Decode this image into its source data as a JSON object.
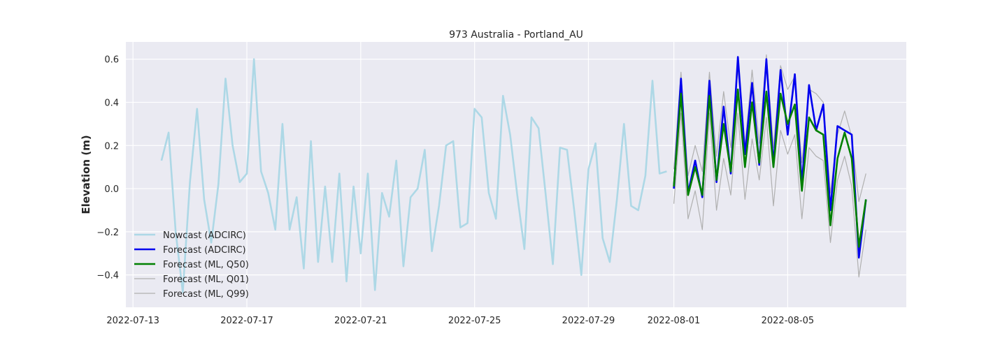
{
  "chart_data": {
    "type": "line",
    "title": "973 Australia - Portland_AU",
    "xlabel": "",
    "ylabel": "Elevation (m)",
    "x_axis_type": "date",
    "xlim": [
      "2022-07-12T18:00",
      "2022-08-09T04:00"
    ],
    "ylim": [
      -0.55,
      0.68
    ],
    "x_ticks": [
      "2022-07-13",
      "2022-07-17",
      "2022-07-21",
      "2022-07-25",
      "2022-07-29",
      "2022-08-01",
      "2022-08-05"
    ],
    "y_ticks": [
      -0.4,
      -0.2,
      0.0,
      0.2,
      0.4,
      0.6
    ],
    "y_tick_labels": [
      "−0.4",
      "−0.2",
      "0.0",
      "0.2",
      "0.4",
      "0.6"
    ],
    "grid": true,
    "legend_position": "lower-left",
    "background_color": "#eaeaf2",
    "series": [
      {
        "name": "Nowcast (ADCIRC)",
        "color": "#add8e6",
        "style": "thick",
        "x": [
          "2022-07-14T00:00",
          "2022-07-14T06:00",
          "2022-07-14T12:00",
          "2022-07-14T18:00",
          "2022-07-15T00:00",
          "2022-07-15T06:00",
          "2022-07-15T12:00",
          "2022-07-15T18:00",
          "2022-07-16T00:00",
          "2022-07-16T06:00",
          "2022-07-16T12:00",
          "2022-07-16T18:00",
          "2022-07-17T00:00",
          "2022-07-17T06:00",
          "2022-07-17T12:00",
          "2022-07-17T18:00",
          "2022-07-18T00:00",
          "2022-07-18T06:00",
          "2022-07-18T12:00",
          "2022-07-18T18:00",
          "2022-07-19T00:00",
          "2022-07-19T06:00",
          "2022-07-19T12:00",
          "2022-07-19T18:00",
          "2022-07-20T00:00",
          "2022-07-20T06:00",
          "2022-07-20T12:00",
          "2022-07-20T18:00",
          "2022-07-21T00:00",
          "2022-07-21T06:00",
          "2022-07-21T12:00",
          "2022-07-21T18:00",
          "2022-07-22T00:00",
          "2022-07-22T06:00",
          "2022-07-22T12:00",
          "2022-07-22T18:00",
          "2022-07-23T00:00",
          "2022-07-23T06:00",
          "2022-07-23T12:00",
          "2022-07-23T18:00",
          "2022-07-24T00:00",
          "2022-07-24T06:00",
          "2022-07-24T12:00",
          "2022-07-24T18:00",
          "2022-07-25T00:00",
          "2022-07-25T06:00",
          "2022-07-25T12:00",
          "2022-07-25T18:00",
          "2022-07-26T00:00",
          "2022-07-26T06:00",
          "2022-07-26T12:00",
          "2022-07-26T18:00",
          "2022-07-27T00:00",
          "2022-07-27T06:00",
          "2022-07-27T12:00",
          "2022-07-27T18:00",
          "2022-07-28T00:00",
          "2022-07-28T06:00",
          "2022-07-28T12:00",
          "2022-07-28T18:00",
          "2022-07-29T00:00",
          "2022-07-29T06:00",
          "2022-07-29T12:00",
          "2022-07-29T18:00",
          "2022-07-30T00:00",
          "2022-07-30T06:00",
          "2022-07-30T12:00",
          "2022-07-30T18:00",
          "2022-07-31T00:00",
          "2022-07-31T06:00",
          "2022-07-31T12:00",
          "2022-07-31T18:00"
        ],
        "values": [
          0.13,
          0.26,
          -0.2,
          -0.48,
          0.03,
          0.37,
          -0.05,
          -0.25,
          0.02,
          0.51,
          0.2,
          0.03,
          0.07,
          0.6,
          0.08,
          -0.02,
          -0.19,
          0.3,
          -0.19,
          -0.04,
          -0.37,
          0.22,
          -0.34,
          0.01,
          -0.34,
          0.07,
          -0.43,
          0.01,
          -0.3,
          0.07,
          -0.47,
          -0.02,
          -0.13,
          0.13,
          -0.36,
          -0.04,
          0.0,
          0.18,
          -0.29,
          -0.08,
          0.2,
          0.22,
          -0.18,
          -0.16,
          0.37,
          0.33,
          -0.02,
          -0.14,
          0.43,
          0.25,
          -0.03,
          -0.28,
          0.33,
          0.28,
          -0.03,
          -0.35,
          0.19,
          0.18,
          -0.1,
          -0.4,
          0.09,
          0.21,
          -0.23,
          -0.34,
          -0.05,
          0.3,
          -0.08,
          -0.1,
          0.06,
          0.5,
          0.07,
          0.08
        ]
      },
      {
        "name": "Forecast (ADCIRC)",
        "color": "#0000ee",
        "style": "thick",
        "x": [
          "2022-08-01T00:00",
          "2022-08-01T06:00",
          "2022-08-01T12:00",
          "2022-08-01T18:00",
          "2022-08-02T00:00",
          "2022-08-02T06:00",
          "2022-08-02T12:00",
          "2022-08-02T18:00",
          "2022-08-03T00:00",
          "2022-08-03T06:00",
          "2022-08-03T12:00",
          "2022-08-03T18:00",
          "2022-08-04T00:00",
          "2022-08-04T06:00",
          "2022-08-04T12:00",
          "2022-08-04T18:00",
          "2022-08-05T00:00",
          "2022-08-05T06:00",
          "2022-08-05T12:00",
          "2022-08-05T18:00",
          "2022-08-06T00:00",
          "2022-08-06T06:00",
          "2022-08-06T12:00",
          "2022-08-06T18:00",
          "2022-08-07T00:00",
          "2022-08-07T06:00",
          "2022-08-07T12:00",
          "2022-08-07T18:00"
        ],
        "values": [
          0.0,
          0.51,
          -0.02,
          0.13,
          -0.04,
          0.5,
          0.03,
          0.38,
          0.07,
          0.61,
          0.16,
          0.49,
          0.11,
          0.6,
          0.11,
          0.55,
          0.25,
          0.53,
          0.02,
          0.48,
          0.27,
          0.39,
          -0.1,
          0.29,
          0.27,
          0.25,
          -0.32,
          -0.05
        ]
      },
      {
        "name": "Forecast (ML, Q50)",
        "color": "#008000",
        "style": "thick",
        "x": [
          "2022-08-01T00:00",
          "2022-08-01T06:00",
          "2022-08-01T12:00",
          "2022-08-01T18:00",
          "2022-08-02T00:00",
          "2022-08-02T06:00",
          "2022-08-02T12:00",
          "2022-08-02T18:00",
          "2022-08-03T00:00",
          "2022-08-03T06:00",
          "2022-08-03T12:00",
          "2022-08-03T18:00",
          "2022-08-04T00:00",
          "2022-08-04T06:00",
          "2022-08-04T12:00",
          "2022-08-04T18:00",
          "2022-08-05T00:00",
          "2022-08-05T06:00",
          "2022-08-05T12:00",
          "2022-08-05T18:00",
          "2022-08-06T00:00",
          "2022-08-06T06:00",
          "2022-08-06T12:00",
          "2022-08-06T18:00",
          "2022-08-07T00:00",
          "2022-08-07T06:00",
          "2022-08-07T12:00",
          "2022-08-07T18:00"
        ],
        "values": [
          0.01,
          0.44,
          -0.03,
          0.1,
          -0.03,
          0.43,
          0.04,
          0.3,
          0.08,
          0.46,
          0.1,
          0.4,
          0.12,
          0.45,
          0.1,
          0.44,
          0.3,
          0.39,
          -0.01,
          0.33,
          0.27,
          0.25,
          -0.17,
          0.14,
          0.26,
          0.14,
          -0.27,
          -0.05
        ]
      },
      {
        "name": "Forecast (ML, Q01)",
        "color": "#b0b0b0",
        "style": "thin",
        "x": [
          "2022-08-01T00:00",
          "2022-08-01T06:00",
          "2022-08-01T12:00",
          "2022-08-01T18:00",
          "2022-08-02T00:00",
          "2022-08-02T06:00",
          "2022-08-02T12:00",
          "2022-08-02T18:00",
          "2022-08-03T00:00",
          "2022-08-03T06:00",
          "2022-08-03T12:00",
          "2022-08-03T18:00",
          "2022-08-04T00:00",
          "2022-08-04T06:00",
          "2022-08-04T12:00",
          "2022-08-04T18:00",
          "2022-08-05T00:00",
          "2022-08-05T06:00",
          "2022-08-05T12:00",
          "2022-08-05T18:00",
          "2022-08-06T00:00",
          "2022-08-06T06:00",
          "2022-08-06T12:00",
          "2022-08-06T18:00",
          "2022-08-07T00:00",
          "2022-08-07T06:00",
          "2022-08-07T12:00",
          "2022-08-07T18:00"
        ],
        "values": [
          -0.07,
          0.35,
          -0.14,
          -0.01,
          -0.19,
          0.35,
          -0.1,
          0.14,
          -0.03,
          0.35,
          -0.05,
          0.23,
          0.04,
          0.33,
          -0.08,
          0.27,
          0.16,
          0.25,
          -0.14,
          0.19,
          0.15,
          0.13,
          -0.25,
          0.04,
          0.15,
          0.01,
          -0.41,
          -0.19
        ]
      },
      {
        "name": "Forecast (ML, Q99)",
        "color": "#b0b0b0",
        "style": "thin",
        "x": [
          "2022-08-01T00:00",
          "2022-08-01T06:00",
          "2022-08-01T12:00",
          "2022-08-01T18:00",
          "2022-08-02T00:00",
          "2022-08-02T06:00",
          "2022-08-02T12:00",
          "2022-08-02T18:00",
          "2022-08-03T00:00",
          "2022-08-03T06:00",
          "2022-08-03T12:00",
          "2022-08-03T18:00",
          "2022-08-04T00:00",
          "2022-08-04T06:00",
          "2022-08-04T12:00",
          "2022-08-04T18:00",
          "2022-08-05T00:00",
          "2022-08-05T06:00",
          "2022-08-05T12:00",
          "2022-08-05T18:00",
          "2022-08-06T00:00",
          "2022-08-06T06:00",
          "2022-08-06T12:00",
          "2022-08-06T18:00",
          "2022-08-07T00:00",
          "2022-08-07T06:00",
          "2022-08-07T12:00",
          "2022-08-07T18:00"
        ],
        "values": [
          0.09,
          0.54,
          0.06,
          0.2,
          0.08,
          0.54,
          0.15,
          0.45,
          0.19,
          0.55,
          0.2,
          0.55,
          0.21,
          0.62,
          0.19,
          0.57,
          0.46,
          0.52,
          0.12,
          0.46,
          0.44,
          0.4,
          -0.02,
          0.25,
          0.36,
          0.24,
          -0.06,
          0.07
        ]
      }
    ]
  }
}
